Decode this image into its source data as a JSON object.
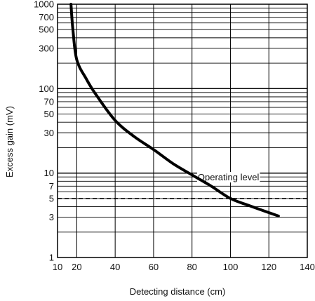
{
  "chart_data": {
    "type": "line",
    "xlabel": "Detecting distance (cm)",
    "ylabel": "Excess gain (mV)",
    "xlim": [
      10,
      140
    ],
    "ylim": [
      1,
      1000
    ],
    "y_scale": "log",
    "grid": true,
    "x_ticks": [
      "10",
      "20",
      "40",
      "60",
      "80",
      "100",
      "120",
      "140"
    ],
    "y_ticks": [
      "1",
      "3",
      "5",
      "7",
      "10",
      "30",
      "50",
      "70",
      "100",
      "300",
      "500",
      "700",
      "1000"
    ],
    "series": [
      {
        "x": [
          17,
          18,
          20,
          25,
          30,
          40,
          50,
          60,
          70,
          80,
          90,
          100,
          110,
          120,
          125
        ],
        "y": [
          1000,
          500,
          220,
          130,
          85,
          42,
          27,
          19,
          13,
          9.5,
          7,
          5,
          4.1,
          3.4,
          3.1
        ]
      }
    ],
    "reference_line": {
      "y": 5,
      "style": "dashed",
      "label": "Operating level"
    }
  }
}
